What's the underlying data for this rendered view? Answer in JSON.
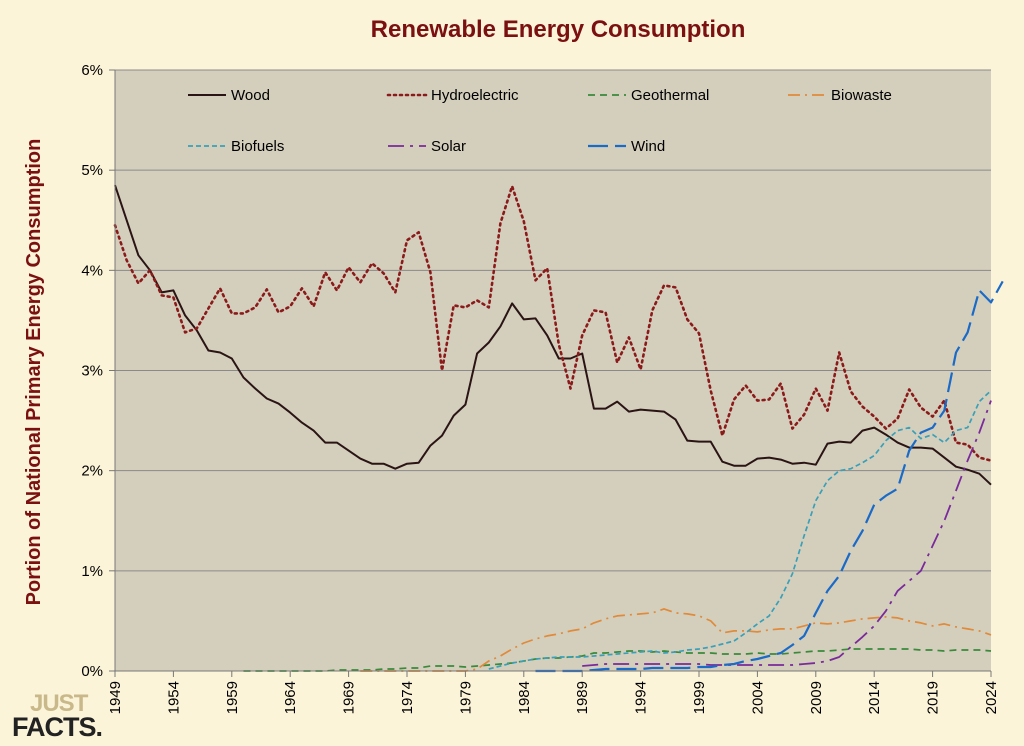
{
  "logo": {
    "line1": "JUST",
    "line2": "FACTS."
  },
  "colors": {
    "background": "#fcf4d9",
    "plot_area": "#d4cfbd",
    "title": "#7b1010"
  },
  "chart_data": {
    "type": "line",
    "title": "Renewable Energy Consumption",
    "xlabel": "",
    "ylabel": "Portion of National Primary Energy Consumption",
    "xlim": [
      1949,
      2024
    ],
    "ylim": [
      0,
      6
    ],
    "x_ticks": [
      "1949",
      "1954",
      "1959",
      "1964",
      "1969",
      "1974",
      "1979",
      "1984",
      "1989",
      "1994",
      "1999",
      "2004",
      "2009",
      "2014",
      "2019",
      "2024"
    ],
    "y_ticks": [
      "0%",
      "1%",
      "2%",
      "3%",
      "4%",
      "5%",
      "6%"
    ],
    "grid": true,
    "legend_position": "top",
    "series": [
      {
        "name": "Wood",
        "color": "#2a1414",
        "dash": "solid",
        "start": 1949,
        "values": [
          4.85,
          4.5,
          4.15,
          4.0,
          3.78,
          3.8,
          3.55,
          3.4,
          3.2,
          3.18,
          3.12,
          2.93,
          2.82,
          2.72,
          2.67,
          2.58,
          2.48,
          2.4,
          2.28,
          2.28,
          2.2,
          2.12,
          2.07,
          2.07,
          2.02,
          2.07,
          2.08,
          2.25,
          2.35,
          2.55,
          2.66,
          3.17,
          3.28,
          3.44,
          3.67,
          3.51,
          3.52,
          3.35,
          3.12,
          3.12,
          3.17,
          2.62,
          2.62,
          2.69,
          2.59,
          2.61,
          2.6,
          2.59,
          2.51,
          2.3,
          2.29,
          2.29,
          2.09,
          2.05,
          2.05,
          2.12,
          2.13,
          2.11,
          2.07,
          2.08,
          2.06,
          2.27,
          2.29,
          2.28,
          2.4,
          2.43,
          2.36,
          2.28,
          2.23,
          2.23,
          2.22,
          2.13,
          2.04,
          2.01,
          1.97,
          1.86
        ]
      },
      {
        "name": "Hydroelectric",
        "color": "#8b1a1a",
        "dash": "dot",
        "start": 1949,
        "values": [
          4.45,
          4.1,
          3.87,
          4.0,
          3.75,
          3.73,
          3.38,
          3.42,
          3.62,
          3.82,
          3.57,
          3.57,
          3.63,
          3.81,
          3.58,
          3.64,
          3.82,
          3.64,
          3.98,
          3.8,
          4.03,
          3.88,
          4.07,
          3.97,
          3.78,
          4.3,
          4.38,
          3.98,
          3.0,
          3.65,
          3.63,
          3.7,
          3.63,
          4.47,
          4.84,
          4.49,
          3.9,
          4.02,
          3.26,
          2.82,
          3.35,
          3.6,
          3.58,
          3.08,
          3.33,
          3.01,
          3.6,
          3.85,
          3.83,
          3.51,
          3.37,
          2.8,
          2.35,
          2.71,
          2.85,
          2.7,
          2.71,
          2.87,
          2.42,
          2.56,
          2.82,
          2.6,
          3.18,
          2.79,
          2.64,
          2.54,
          2.42,
          2.52,
          2.81,
          2.63,
          2.54,
          2.7,
          2.28,
          2.26,
          2.13,
          2.1
        ]
      },
      {
        "name": "Geothermal",
        "color": "#3a8a3a",
        "dash": "dash",
        "start": 1960,
        "values": [
          0.0,
          0.0,
          0.0,
          0.0,
          0.0,
          0.0,
          0.0,
          0.0,
          0.01,
          0.01,
          0.01,
          0.01,
          0.02,
          0.02,
          0.03,
          0.03,
          0.05,
          0.05,
          0.05,
          0.04,
          0.05,
          0.06,
          0.07,
          0.08,
          0.1,
          0.12,
          0.13,
          0.13,
          0.14,
          0.15,
          0.18,
          0.18,
          0.19,
          0.2,
          0.2,
          0.19,
          0.2,
          0.19,
          0.18,
          0.18,
          0.18,
          0.17,
          0.17,
          0.17,
          0.18,
          0.17,
          0.17,
          0.18,
          0.19,
          0.2,
          0.2,
          0.21,
          0.22,
          0.22,
          0.22,
          0.22,
          0.22,
          0.22,
          0.21,
          0.21,
          0.2,
          0.21,
          0.21,
          0.21,
          0.2
        ]
      },
      {
        "name": "Biowaste",
        "color": "#e08a3a",
        "dash": "dashdot",
        "start": 1970,
        "values": [
          0.0,
          0.0,
          0.0,
          0.0,
          0.0,
          0.0,
          0.0,
          0.0,
          0.0,
          0.0,
          0.02,
          0.1,
          0.15,
          0.22,
          0.28,
          0.32,
          0.35,
          0.37,
          0.4,
          0.42,
          0.48,
          0.52,
          0.55,
          0.56,
          0.57,
          0.58,
          0.62,
          0.58,
          0.57,
          0.55,
          0.5,
          0.38,
          0.4,
          0.4,
          0.39,
          0.41,
          0.42,
          0.42,
          0.45,
          0.48,
          0.47,
          0.48,
          0.5,
          0.52,
          0.53,
          0.54,
          0.53,
          0.5,
          0.48,
          0.45,
          0.47,
          0.44,
          0.42,
          0.4,
          0.36
        ]
      },
      {
        "name": "Biofuels",
        "color": "#3aa0b8",
        "dash": "shortdash",
        "start": 1981,
        "values": [
          0.02,
          0.05,
          0.08,
          0.1,
          0.12,
          0.13,
          0.14,
          0.14,
          0.14,
          0.15,
          0.16,
          0.17,
          0.18,
          0.19,
          0.2,
          0.18,
          0.19,
          0.21,
          0.22,
          0.24,
          0.27,
          0.3,
          0.38,
          0.47,
          0.55,
          0.73,
          0.97,
          1.35,
          1.7,
          1.9,
          2.0,
          2.02,
          2.08,
          2.15,
          2.3,
          2.4,
          2.43,
          2.32,
          2.36,
          2.28,
          2.4,
          2.43,
          2.69,
          2.8
        ]
      },
      {
        "name": "Solar",
        "color": "#7a2a9a",
        "dash": "longdashdot",
        "start": 1989,
        "values": [
          0.05,
          0.06,
          0.07,
          0.07,
          0.07,
          0.07,
          0.07,
          0.07,
          0.07,
          0.07,
          0.07,
          0.06,
          0.06,
          0.06,
          0.06,
          0.06,
          0.06,
          0.06,
          0.06,
          0.07,
          0.08,
          0.1,
          0.14,
          0.24,
          0.34,
          0.45,
          0.6,
          0.8,
          0.9,
          1.0,
          1.25,
          1.5,
          1.8,
          2.1,
          2.38,
          2.7
        ]
      },
      {
        "name": "Wind",
        "color": "#1a6ac8",
        "dash": "longdash",
        "start": 1985,
        "values": [
          0.0,
          0.0,
          0.0,
          0.0,
          0.0,
          0.01,
          0.02,
          0.02,
          0.02,
          0.02,
          0.03,
          0.03,
          0.03,
          0.03,
          0.04,
          0.04,
          0.06,
          0.07,
          0.1,
          0.12,
          0.15,
          0.18,
          0.26,
          0.35,
          0.58,
          0.8,
          0.95,
          1.2,
          1.4,
          1.66,
          1.75,
          1.82,
          2.2,
          2.38,
          2.43,
          2.6,
          3.18,
          3.38,
          3.8,
          3.68,
          3.89
        ]
      }
    ]
  }
}
